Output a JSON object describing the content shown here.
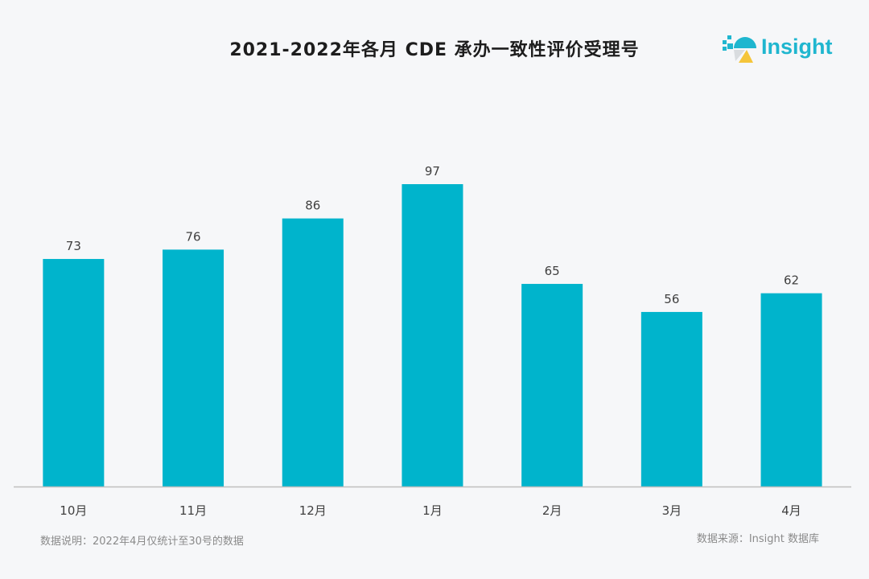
{
  "title": "2021-2022年各月 CDE 承办一致性评价受理号",
  "logo": {
    "text": "Insight",
    "icon": "insight-logo-icon"
  },
  "footnote": "数据说明：2022年4月仅统计至30号的数据",
  "source": "数据来源：Insight 数据库",
  "colors": {
    "bar": "#00b4cc",
    "axis": "#bfbfbf",
    "label": "#404040",
    "brand": "#1fb6cf"
  },
  "chart_data": {
    "type": "bar",
    "title": "2021-2022年各月 CDE 承办一致性评价受理号",
    "categories": [
      "10月",
      "11月",
      "12月",
      "1月",
      "2月",
      "3月",
      "4月"
    ],
    "values": [
      73,
      76,
      86,
      97,
      65,
      56,
      62
    ],
    "xlabel": "",
    "ylabel": "",
    "ylim": [
      0,
      97
    ],
    "grid": false,
    "legend": "none",
    "data_labels": true
  }
}
